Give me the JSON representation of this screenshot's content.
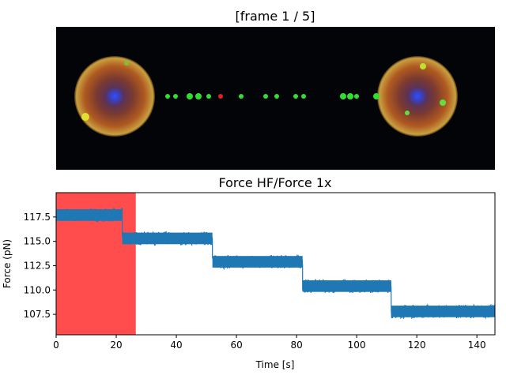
{
  "image_panel": {
    "title": "[frame 1 / 5]",
    "background_color": "#020408"
  },
  "chart_data": {
    "type": "line",
    "title": "Force HF/Force 1x",
    "xlabel": "Time [s]",
    "ylabel": "Force (pN)",
    "xlim": [
      0,
      146
    ],
    "ylim": [
      105.4,
      120.0
    ],
    "xticks": [
      0,
      20,
      40,
      60,
      80,
      100,
      120,
      140
    ],
    "xtick_labels": [
      "0",
      "20",
      "40",
      "60",
      "80",
      "100",
      "120",
      "140"
    ],
    "yticks": [
      107.5,
      110.0,
      112.5,
      115.0,
      117.5
    ],
    "ytick_labels": [
      "107.5",
      "110.0",
      "112.5",
      "115.0",
      "117.5"
    ],
    "grid": false,
    "series": [
      {
        "color": "#1f77b4",
        "steps": [
          {
            "x_start": 0,
            "x_end": 22,
            "mean": 117.7,
            "noise": 0.7
          },
          {
            "x_start": 22,
            "x_end": 52,
            "mean": 115.3,
            "noise": 0.7
          },
          {
            "x_start": 52,
            "x_end": 82,
            "mean": 112.9,
            "noise": 0.7
          },
          {
            "x_start": 82,
            "x_end": 111.5,
            "mean": 110.4,
            "noise": 0.7
          },
          {
            "x_start": 111.5,
            "x_end": 146,
            "mean": 107.8,
            "noise": 0.7
          }
        ]
      }
    ],
    "highlight": {
      "x_start": 0,
      "x_end": 26.5,
      "color": "#ff4c4c"
    }
  }
}
